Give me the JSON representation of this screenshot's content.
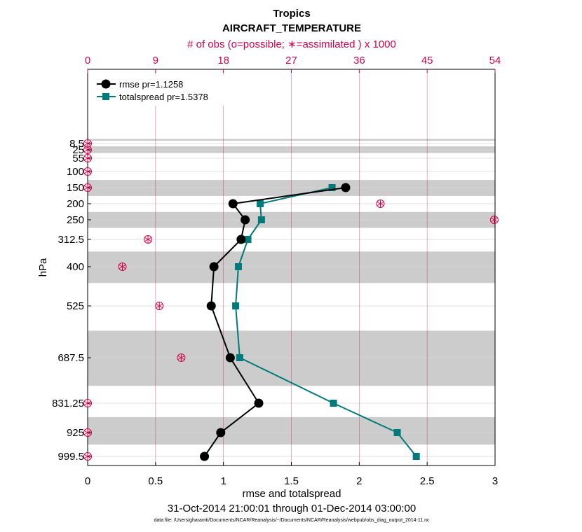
{
  "chart_data": {
    "type": "line",
    "title": "Tropics",
    "subtitle": "AIRCRAFT_TEMPERATURE",
    "top_axis_label": "# of obs (o=possible; ∗=assimilated ) x 1000",
    "xlabel": "rmse and totalspread",
    "ylabel": "hPa",
    "date_range": "31-Oct-2014 21:00:01 through 01-Dec-2014 03:00:00",
    "footnote": "data file: /Users/gharamti/Documents/NCAR/Reanalysis/~/Documents/NCAR/Reanalysis/webpub/obs_diag_output_2014-11.nc",
    "xlim": [
      0,
      3
    ],
    "x_ticks": [
      "0",
      "0.5",
      "1",
      "1.5",
      "2",
      "2.5",
      "3"
    ],
    "top_xlim": [
      0,
      54
    ],
    "top_ticks": [
      "0",
      "9",
      "18",
      "27",
      "36",
      "45",
      "54"
    ],
    "levels": [
      "8.5",
      "25",
      "55",
      "100",
      "150",
      "200",
      "250",
      "312.5",
      "400",
      "525",
      "687.5",
      "831.25",
      "925",
      "999.5"
    ],
    "series": [
      {
        "name": "rmse",
        "legend": "rmse pr=1.1258",
        "color": "#000000",
        "marker": "circle",
        "levels": [
          "150",
          "200",
          "250",
          "312.5",
          "400",
          "525",
          "687.5",
          "831.25",
          "925",
          "999.5"
        ],
        "values": [
          1.9,
          1.07,
          1.16,
          1.13,
          0.93,
          0.91,
          1.05,
          1.26,
          0.98,
          0.86
        ]
      },
      {
        "name": "totalspread",
        "legend": "totalspread pr=1.5378",
        "color": "#007a7a",
        "marker": "square",
        "levels": [
          "150",
          "200",
          "250",
          "312.5",
          "400",
          "525",
          "687.5",
          "831.25",
          "925",
          "999.5"
        ],
        "values": [
          1.8,
          1.27,
          1.28,
          1.18,
          1.11,
          1.09,
          1.12,
          1.81,
          2.28,
          2.42
        ]
      }
    ],
    "obs_counts": {
      "levels": [
        "8.5",
        "25",
        "55",
        "100",
        "150",
        "200",
        "250",
        "312.5",
        "400",
        "525",
        "687.5",
        "831.25",
        "925",
        "999.5"
      ],
      "possible": [
        0,
        0,
        0,
        0,
        0,
        38.8,
        53.9,
        8.0,
        4.6,
        9.5,
        12.4,
        0,
        0,
        0
      ],
      "assimilated": [
        0,
        0,
        0,
        0,
        0,
        38.8,
        53.9,
        8.0,
        4.6,
        9.5,
        12.4,
        0,
        0,
        0
      ]
    },
    "colors": {
      "obs_marker": "#d6004b",
      "band": "#cccccc",
      "grid": "#d9d9d9",
      "top_grid": "#d6004b"
    }
  }
}
